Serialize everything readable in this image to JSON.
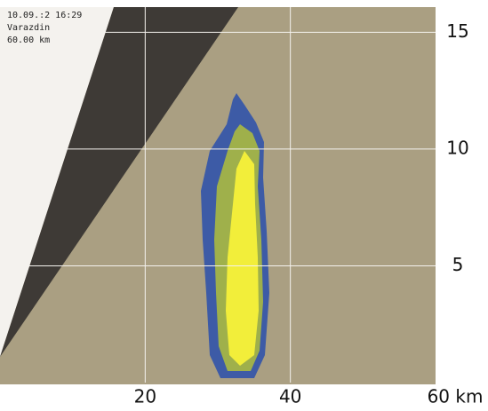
{
  "chart_data": {
    "type": "radar",
    "annotations": [
      "10.09.:2 16:29",
      "Varazdin",
      "60.00 km"
    ],
    "xlim": [
      0,
      60
    ],
    "xticks": [
      20,
      40,
      {
        "value": 60,
        "label": "60 km"
      }
    ],
    "ylim": [
      0,
      16
    ],
    "yticks": [
      5,
      10,
      15
    ],
    "grid": true
  }
}
